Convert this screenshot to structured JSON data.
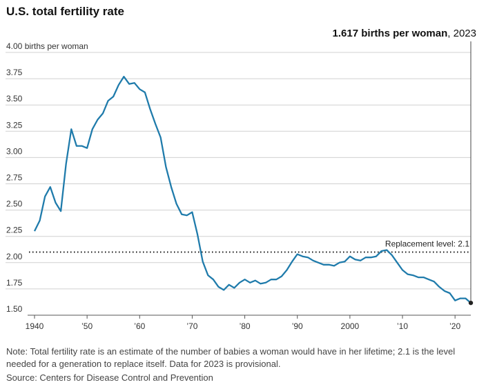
{
  "header": {
    "title": "U.S. total fertility rate"
  },
  "annotation": {
    "value_text": "1.617 births per woman",
    "year_text": ", 2023"
  },
  "replacement": {
    "label": "Replacement level: 2.1",
    "value": 2.1
  },
  "footer": {
    "note": "Note: Total fertility rate is an estimate of the number of babies a woman would have in her lifetime; 2.1 is the level needed for a generation to replace itself. Data for 2023 is provisional.",
    "source": "Source: Centers for Disease Control and Prevention"
  },
  "colors": {
    "line": "#1f7bab",
    "grid": "#d0d0d0",
    "marker": "#222222"
  },
  "chart_data": {
    "type": "line",
    "title": "U.S. total fertility rate",
    "xlabel": "",
    "ylabel": "",
    "xlim": [
      1940,
      2023
    ],
    "ylim": [
      1.5,
      4.0
    ],
    "grid": true,
    "y_ticks": [
      {
        "value": 4.0,
        "label": "4.00 births per woman"
      },
      {
        "value": 3.75,
        "label": "3.75"
      },
      {
        "value": 3.5,
        "label": "3.50"
      },
      {
        "value": 3.25,
        "label": "3.25"
      },
      {
        "value": 3.0,
        "label": "3.00"
      },
      {
        "value": 2.75,
        "label": "2.75"
      },
      {
        "value": 2.5,
        "label": "2.50"
      },
      {
        "value": 2.25,
        "label": "2.25"
      },
      {
        "value": 2.0,
        "label": "2.00"
      },
      {
        "value": 1.75,
        "label": "1.75"
      },
      {
        "value": 1.5,
        "label": "1.50"
      }
    ],
    "x_ticks": [
      {
        "value": 1940,
        "label": "1940"
      },
      {
        "value": 1950,
        "label": "’50"
      },
      {
        "value": 1960,
        "label": "’60"
      },
      {
        "value": 1970,
        "label": "’70"
      },
      {
        "value": 1980,
        "label": "’80"
      },
      {
        "value": 1990,
        "label": "’90"
      },
      {
        "value": 2000,
        "label": "2000"
      },
      {
        "value": 2010,
        "label": "’10"
      },
      {
        "value": 2020,
        "label": "’20"
      }
    ],
    "series": [
      {
        "x": [
          1940,
          1941,
          1942,
          1943,
          1944,
          1945,
          1946,
          1947,
          1948,
          1949,
          1950,
          1951,
          1952,
          1953,
          1954,
          1955,
          1956,
          1957,
          1958,
          1959,
          1960,
          1961,
          1962,
          1963,
          1964,
          1965,
          1966,
          1967,
          1968,
          1969,
          1970,
          1971,
          1972,
          1973,
          1974,
          1975,
          1976,
          1977,
          1978,
          1979,
          1980,
          1981,
          1982,
          1983,
          1984,
          1985,
          1986,
          1987,
          1988,
          1989,
          1990,
          1991,
          1992,
          1993,
          1994,
          1995,
          1996,
          1997,
          1998,
          1999,
          2000,
          2001,
          2002,
          2003,
          2004,
          2005,
          2006,
          2007,
          2008,
          2009,
          2010,
          2011,
          2012,
          2013,
          2014,
          2015,
          2016,
          2017,
          2018,
          2019,
          2020,
          2021,
          2022,
          2023
        ],
        "y": [
          2.3,
          2.4,
          2.63,
          2.72,
          2.57,
          2.49,
          2.94,
          3.27,
          3.11,
          3.11,
          3.09,
          3.27,
          3.36,
          3.42,
          3.54,
          3.58,
          3.69,
          3.77,
          3.7,
          3.71,
          3.65,
          3.62,
          3.46,
          3.32,
          3.19,
          2.91,
          2.72,
          2.56,
          2.46,
          2.45,
          2.48,
          2.27,
          2.01,
          1.88,
          1.84,
          1.77,
          1.74,
          1.79,
          1.76,
          1.81,
          1.84,
          1.81,
          1.83,
          1.8,
          1.81,
          1.84,
          1.84,
          1.87,
          1.93,
          2.01,
          2.08,
          2.06,
          2.05,
          2.02,
          2.0,
          1.98,
          1.98,
          1.97,
          2.0,
          2.01,
          2.06,
          2.03,
          2.02,
          2.05,
          2.05,
          2.06,
          2.11,
          2.12,
          2.07,
          2.0,
          1.93,
          1.89,
          1.88,
          1.86,
          1.86,
          1.84,
          1.82,
          1.77,
          1.73,
          1.71,
          1.64,
          1.66,
          1.66,
          1.617
        ]
      }
    ]
  }
}
